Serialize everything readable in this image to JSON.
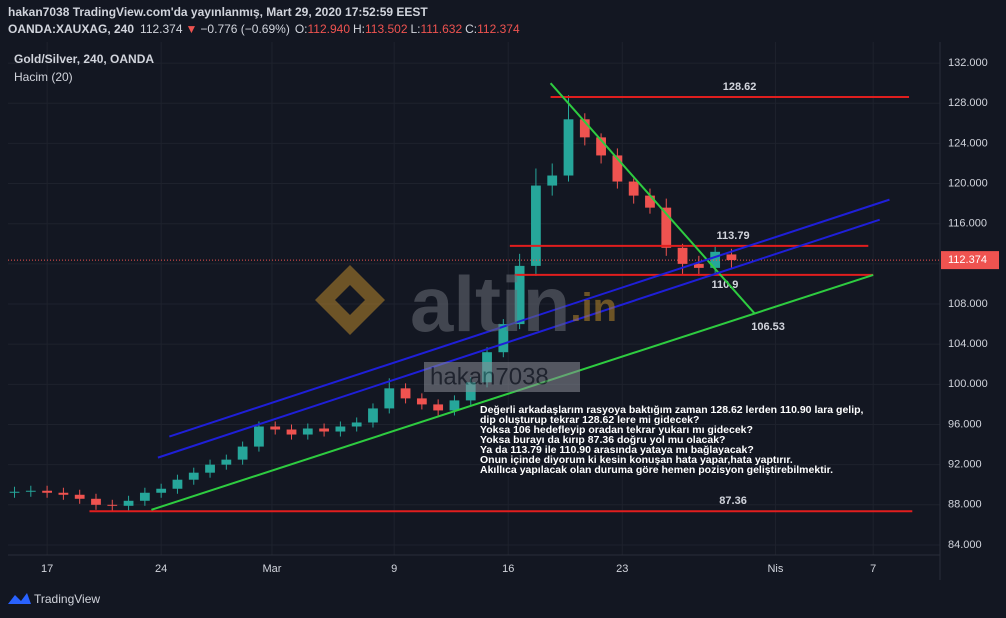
{
  "header": {
    "published": "hakan7038 TradingView.com'da yayınlanmış, Mart 29, 2020 17:52:59 EEST",
    "symbol": "OANDA:XAUXAG, 240",
    "price": "112.374",
    "arrow": "▼",
    "change": "−0.776 (−0.69%)",
    "o_label": "O:",
    "o": "112.940",
    "h_label": "H:",
    "h": "113.502",
    "l_label": "L:",
    "l": "111.632",
    "c_label": "C:",
    "c": "112.374"
  },
  "legend": {
    "series": "Gold/Silver, 240, OANDA",
    "volume": "Hacim (20)"
  },
  "watermark": {
    "brand": "altin",
    "brand_suffix": ".in",
    "user": "hakan7038"
  },
  "footer": {
    "logo": "TradingView"
  },
  "chart_data": {
    "type": "candlestick",
    "x": [
      -2,
      -1,
      0,
      1,
      2,
      3,
      4,
      5,
      6,
      7,
      8,
      9,
      10,
      11,
      12,
      13,
      14,
      15,
      16,
      17,
      18,
      19,
      20,
      21,
      22,
      23,
      24,
      25,
      26,
      27,
      28,
      29,
      30,
      31,
      32,
      33,
      34,
      35,
      36,
      37,
      38,
      39,
      40,
      41,
      42
    ],
    "open": [
      89.2,
      89.3,
      89.4,
      89.2,
      89.0,
      88.6,
      88.0,
      87.9,
      88.4,
      89.2,
      89.6,
      90.5,
      91.2,
      92.0,
      92.5,
      93.8,
      95.8,
      95.5,
      95.0,
      95.6,
      95.3,
      95.8,
      96.2,
      97.6,
      99.6,
      98.6,
      98.0,
      97.4,
      98.4,
      100.2,
      103.2,
      106.0,
      111.8,
      119.8,
      120.8,
      126.4,
      124.6,
      122.8,
      120.2,
      118.8,
      117.6,
      113.6,
      112.0,
      111.6,
      112.94
    ],
    "high": [
      89.8,
      89.9,
      89.9,
      89.7,
      89.5,
      89.1,
      88.5,
      88.9,
      89.7,
      90.1,
      91.0,
      91.7,
      92.5,
      93.0,
      94.3,
      96.3,
      96.3,
      96.0,
      96.1,
      96.1,
      96.3,
      96.7,
      98.1,
      100.6,
      100.1,
      99.1,
      98.5,
      98.9,
      100.7,
      103.7,
      106.5,
      113.0,
      121.5,
      122.0,
      128.8,
      127.0,
      125.0,
      123.5,
      120.5,
      119.5,
      118.5,
      114.0,
      112.8,
      113.7,
      113.502
    ],
    "low": [
      88.7,
      88.8,
      88.7,
      88.5,
      88.1,
      87.5,
      87.4,
      87.4,
      87.9,
      88.7,
      89.1,
      90.0,
      90.7,
      91.5,
      92.0,
      93.3,
      95.0,
      94.5,
      94.5,
      94.8,
      94.8,
      95.3,
      95.7,
      97.1,
      98.1,
      97.5,
      96.9,
      96.9,
      97.9,
      99.7,
      102.7,
      105.5,
      110.8,
      118.8,
      120.2,
      123.8,
      122.0,
      119.5,
      118.0,
      117.0,
      112.8,
      111.0,
      110.8,
      111.0,
      111.632
    ],
    "close": [
      89.3,
      89.4,
      89.2,
      89.0,
      88.6,
      88.0,
      87.9,
      88.4,
      89.2,
      89.6,
      90.5,
      91.2,
      92.0,
      92.5,
      93.8,
      95.8,
      95.5,
      95.0,
      95.6,
      95.3,
      95.8,
      96.2,
      97.6,
      99.6,
      98.6,
      98.0,
      97.4,
      98.4,
      100.2,
      103.2,
      106.0,
      111.8,
      119.8,
      120.8,
      126.4,
      124.6,
      122.8,
      120.2,
      118.8,
      117.6,
      113.6,
      112.0,
      111.6,
      113.2,
      112.374
    ],
    "up_color": "#26a69a",
    "down_color": "#ef5350",
    "xlim": [
      -2.4,
      54.8
    ],
    "ylim": [
      83,
      134.1
    ],
    "xticks": [
      {
        "value": 0,
        "label": "17"
      },
      {
        "value": 7,
        "label": "24"
      },
      {
        "value": 13.8,
        "label": "Mar"
      },
      {
        "value": 21.3,
        "label": "9"
      },
      {
        "value": 28.3,
        "label": "16"
      },
      {
        "value": 35.3,
        "label": "23"
      },
      {
        "value": 44.7,
        "label": "Nis"
      },
      {
        "value": 50.7,
        "label": "7"
      }
    ],
    "yticks": [
      {
        "value": 84,
        "label": "84.000"
      },
      {
        "value": 88,
        "label": "88.000"
      },
      {
        "value": 92,
        "label": "92.000"
      },
      {
        "value": 96,
        "label": "96.000"
      },
      {
        "value": 100,
        "label": "100.000"
      },
      {
        "value": 104,
        "label": "104.000"
      },
      {
        "value": 108,
        "label": "108.000"
      },
      {
        "value": 112,
        "label": "112.000"
      },
      {
        "value": 116,
        "label": "116.000"
      },
      {
        "value": 120,
        "label": "120.000"
      },
      {
        "value": 124,
        "label": "124.000"
      },
      {
        "value": 128,
        "label": "128.000"
      },
      {
        "value": 132,
        "label": "132.000"
      }
    ],
    "grid": true,
    "last_price": {
      "value": 112.374,
      "label": "112.374",
      "color": "#ef5350"
    },
    "levels": [
      {
        "value": 128.62,
        "from": 30.9,
        "to": 52.9,
        "label_x": 42.5,
        "label_side": "above",
        "color": "#e01e1e"
      },
      {
        "value": 113.79,
        "from": 28.4,
        "to": 50.4,
        "label_x": 42.1,
        "label_side": "above",
        "color": "#e01e1e"
      },
      {
        "value": 110.9,
        "from": 28.7,
        "to": 50.7,
        "label_x": 41.6,
        "label_side": "below",
        "color": "#e01e1e"
      },
      {
        "value": 87.36,
        "from": 2.6,
        "to": 53.1,
        "label_x": 42.1,
        "label_side": "above",
        "color": "#e01e1e"
      }
    ],
    "trendlines": [
      {
        "x": [
          30.9,
          43.4
        ],
        "y": [
          130.0,
          107.1
        ],
        "color": "#2ecc40",
        "label": "106.53"
      },
      {
        "x": [
          6.4,
          50.7
        ],
        "y": [
          87.5,
          110.9
        ],
        "color": "#2ecc40"
      },
      {
        "x": [
          7.5,
          51.7
        ],
        "y": [
          94.8,
          118.4
        ],
        "color": "#1f1fd8"
      },
      {
        "x": [
          6.8,
          51.1
        ],
        "y": [
          92.7,
          116.4
        ],
        "color": "#1f1fd8"
      }
    ],
    "note": [
      "Değerli arkadaşlarım rasyoya baktığım zaman 128.62 lerden 110.90 lara gelip,",
      "dip oluşturup tekrar 128.62 lere mi gidecek?",
      "Yoksa 106 hedefleyip oradan tekrar yukarı mı gidecek?",
      "Yoksa burayı da kırıp 87.36 doğru yol mu olacak?",
      "Ya da 113.79 ile 110.90 arasında yataya mı bağlayacak?",
      "Onun içinde diyorum ki kesin konuşan hata yapar,hata yaptırır.",
      "Akıllıca yapılacak olan duruma göre hemen pozisyon geliştirebilmektir."
    ]
  }
}
